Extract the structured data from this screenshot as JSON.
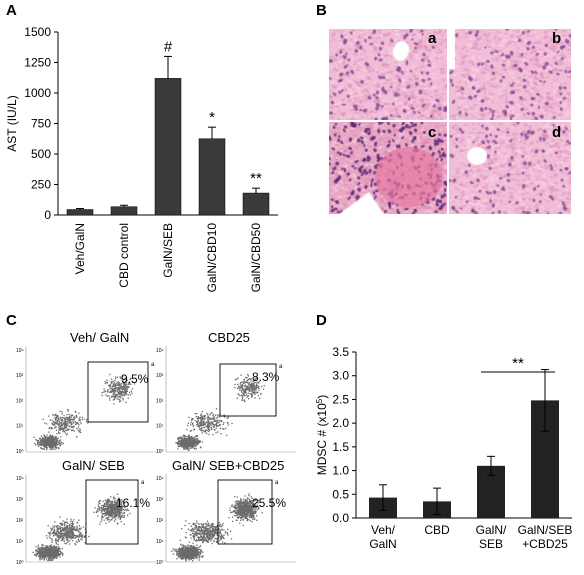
{
  "panels": {
    "a": "A",
    "b": "B",
    "c": "C",
    "d": "D"
  },
  "chart_data": [
    {
      "type": "bar",
      "panel": "A",
      "ylabel": "AST (IU/L)",
      "xlabel": "",
      "ylim": [
        0,
        1500
      ],
      "yticks": [
        "0",
        "250",
        "500",
        "750",
        "1000",
        "1250",
        "1500"
      ],
      "categories": [
        "Veh/GalN",
        "CBD control",
        "GalN/SEB",
        "GalN/CBD10",
        "GalN/CBD50"
      ],
      "values": [
        45,
        68,
        1120,
        625,
        180
      ],
      "errors": [
        8,
        12,
        180,
        95,
        40
      ],
      "annotations": [
        "",
        "",
        "#",
        "*",
        "**"
      ],
      "bar_color": "#3a3a3a"
    },
    {
      "type": "bar",
      "panel": "D",
      "ylabel": "MDSC # (x10",
      "ylabel_sup": "5",
      "ylabel_end": ")",
      "ylim": [
        0,
        3.5
      ],
      "yticks": [
        "0.0",
        "0.5",
        "1.0",
        "1.5",
        "2.0",
        "2.5",
        "3.0",
        "3.5"
      ],
      "categories": [
        [
          "Veh/",
          "GalN"
        ],
        [
          "CBD"
        ],
        [
          "GalN/",
          "SEB"
        ],
        [
          "GalN/SEB",
          "+CBD25"
        ]
      ],
      "values": [
        0.43,
        0.35,
        1.1,
        2.48
      ],
      "errors": [
        0.27,
        0.28,
        0.2,
        0.65
      ],
      "significance": "**",
      "bar_color": "#222222"
    }
  ],
  "histology": {
    "labels": [
      "a",
      "b",
      "c",
      "d"
    ]
  },
  "flow": {
    "plots": [
      {
        "title": "Veh/ GalN",
        "pct": "9.5%",
        "gate": "a"
      },
      {
        "title": "CBD25",
        "pct": "8.3%",
        "gate": "a"
      },
      {
        "title": "GalN/ SEB",
        "pct": "16.1%",
        "gate": "a"
      },
      {
        "title": "GalN/ SEB+CBD25",
        "pct": "25.5%",
        "gate": "a"
      }
    ]
  },
  "colors": {
    "he_pink": "#e6a9c8",
    "he_nuclei": "#7a3f8e",
    "bar": "#333333"
  }
}
